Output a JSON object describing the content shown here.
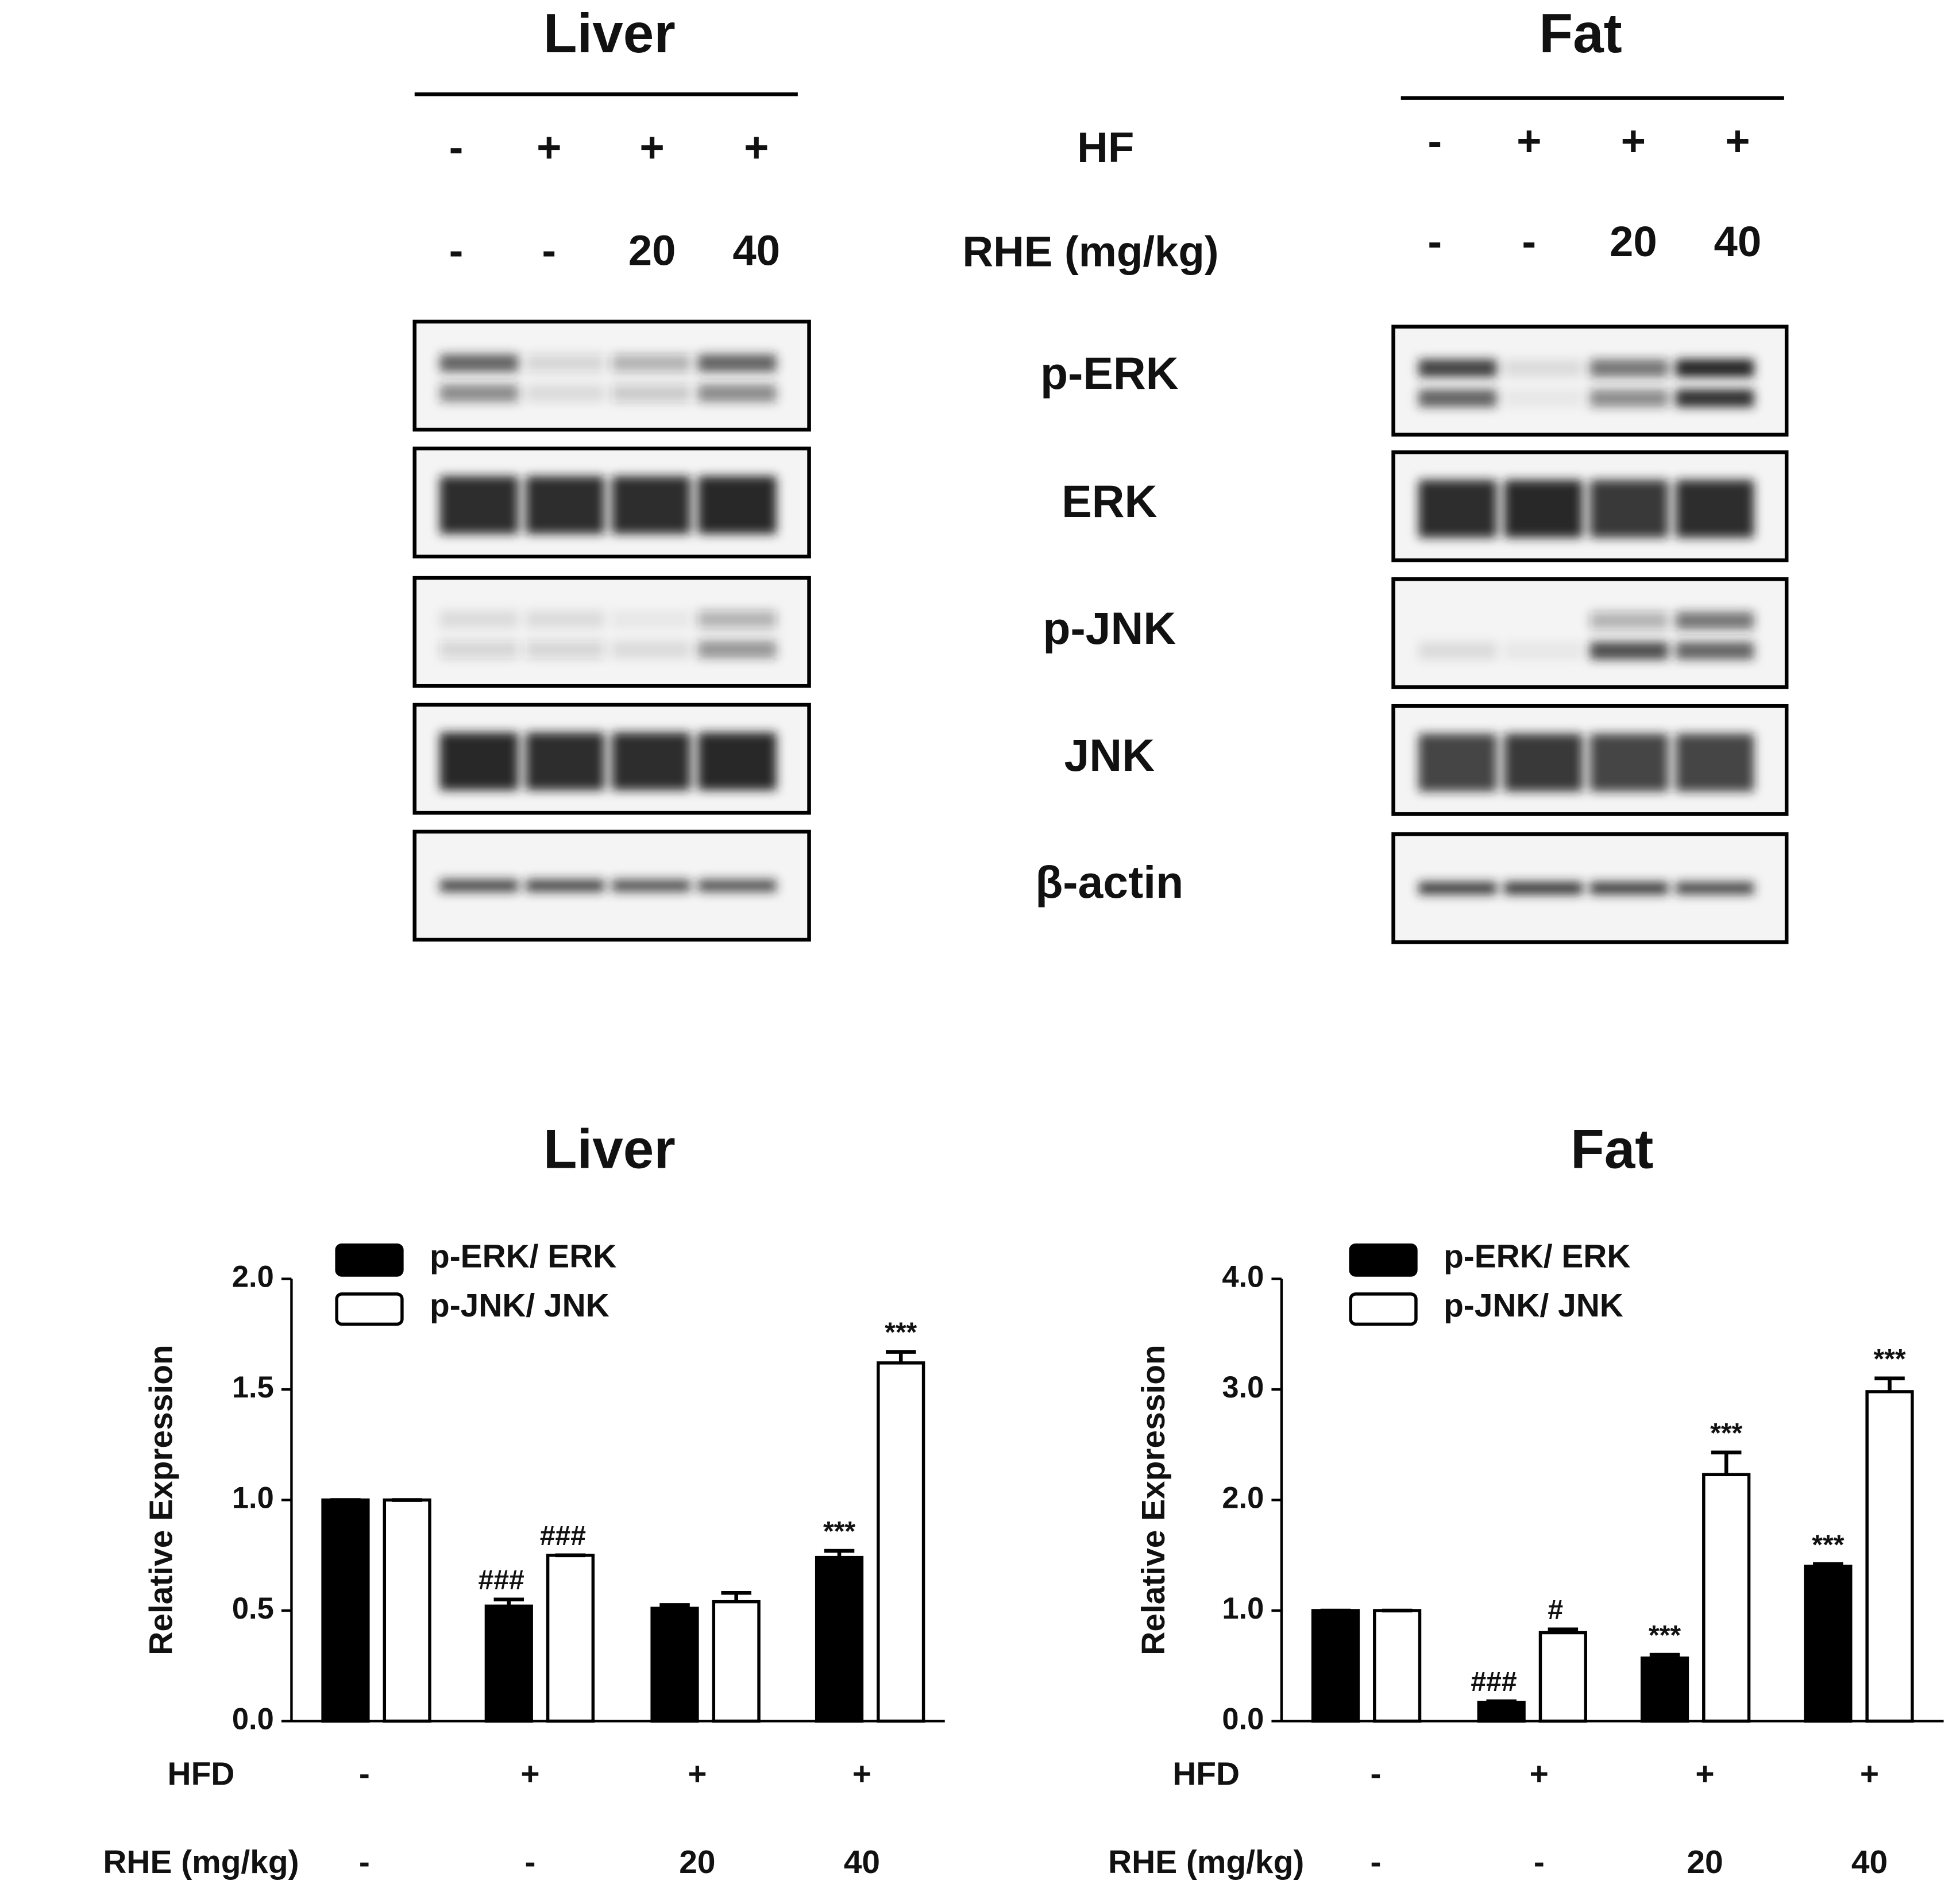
{
  "blots": {
    "row_labels": {
      "hf": "HF",
      "rhe": "RHE (mg/kg)"
    },
    "panels": [
      {
        "title": "Liver",
        "hf": [
          "-",
          "+",
          "+",
          "+"
        ],
        "rhe": [
          "-",
          "-",
          "20",
          "40"
        ]
      },
      {
        "title": "Fat",
        "hf": [
          "-",
          "+",
          "+",
          "+"
        ],
        "rhe": [
          "-",
          "-",
          "20",
          "40"
        ]
      }
    ],
    "proteins": [
      "p-ERK",
      "ERK",
      "p-JNK",
      "JNK",
      "β-actin"
    ]
  },
  "chart_data": [
    {
      "type": "bar",
      "title": "Liver",
      "ylabel": "Relative Expression",
      "ylim": [
        0,
        2.0
      ],
      "yticks": [
        {
          "value": 0,
          "label": "0.0"
        },
        0.5,
        {
          "value": 1.0,
          "label": "1.0"
        },
        1.5,
        {
          "value": 2.0,
          "label": "2.0"
        }
      ],
      "x_label_rows": [
        {
          "name": "HFD",
          "labels": [
            "-",
            "+",
            "+",
            "+"
          ]
        },
        {
          "name": "RHE (mg/kg)",
          "labels": [
            "-",
            "-",
            "20",
            "40"
          ]
        }
      ],
      "series": [
        {
          "name": "p-ERK/ ERK",
          "color": "#000000",
          "values": [
            1.0,
            0.52,
            0.51,
            0.74
          ],
          "errors": [
            0,
            0.03,
            0.015,
            0.03
          ],
          "annotations": [
            null,
            "###",
            null,
            "***"
          ]
        },
        {
          "name": "p-JNK/ JNK",
          "color": "#ffffff",
          "values": [
            1.0,
            0.75,
            0.54,
            1.62
          ],
          "errors": [
            0,
            0,
            0.04,
            0.05
          ],
          "annotations": [
            null,
            "###",
            null,
            "***"
          ]
        }
      ]
    },
    {
      "type": "bar",
      "title": "Fat",
      "ylabel": "Relative Expression",
      "ylim": [
        0,
        4.0
      ],
      "yticks": [
        {
          "value": 0,
          "label": "0.0"
        },
        {
          "value": 1.0,
          "label": "1.0"
        },
        {
          "value": 2.0,
          "label": "2.0"
        },
        {
          "value": 3.0,
          "label": "3.0"
        },
        {
          "value": 4.0,
          "label": "4.0"
        }
      ],
      "x_label_rows": [
        {
          "name": "HFD",
          "labels": [
            "-",
            "+",
            "+",
            "+"
          ]
        },
        {
          "name": "RHE (mg/kg)",
          "labels": [
            "-",
            "-",
            "20",
            "40"
          ]
        }
      ],
      "series": [
        {
          "name": "p-ERK/ ERK",
          "color": "#000000",
          "values": [
            1.0,
            0.17,
            0.57,
            1.4
          ],
          "errors": [
            0,
            0.01,
            0.03,
            0.02
          ],
          "annotations": [
            null,
            "###",
            "***",
            "***"
          ]
        },
        {
          "name": "p-JNK/ JNK",
          "color": "#ffffff",
          "values": [
            1.0,
            0.8,
            2.23,
            2.98
          ],
          "errors": [
            0,
            0.03,
            0.2,
            0.12
          ],
          "annotations": [
            null,
            "#",
            "***",
            "***"
          ]
        }
      ]
    }
  ]
}
